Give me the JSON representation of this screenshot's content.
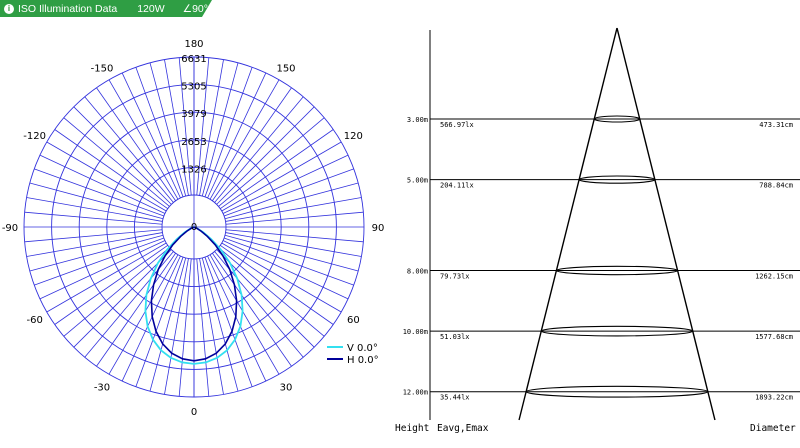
{
  "header": {
    "title": "ISO Illumination  Data",
    "power": "120W",
    "beam_angle": "∠90°",
    "icon": "info-icon",
    "colors": {
      "background": "#2f9e44"
    }
  },
  "chart_data": [
    {
      "type": "polar",
      "name": "luminous-intensity-distribution",
      "radial_ticks": [
        "0",
        "1326",
        "2653",
        "3979",
        "5305",
        "6631"
      ],
      "radial_max": 6631,
      "angle_labels": [
        "180",
        "150",
        "120",
        "90",
        "60",
        "30",
        "0",
        "-30",
        "-60",
        "-90",
        "-120",
        "-150"
      ],
      "angle_label_values": [
        180,
        150,
        120,
        90,
        60,
        30,
        0,
        -30,
        -60,
        -90,
        -120,
        -150
      ],
      "grid_step_degrees": 5,
      "colors": {
        "grid": "#3333dd",
        "series_v": "#33e0f0",
        "series_h": "#00009a"
      },
      "series": [
        {
          "name": "V 0.0°",
          "color": "#33e0f0",
          "points": [
            [
              0,
              5340
            ],
            [
              5,
              5300
            ],
            [
              10,
              5180
            ],
            [
              15,
              4980
            ],
            [
              20,
              4680
            ],
            [
              25,
              4280
            ],
            [
              30,
              3790
            ],
            [
              35,
              3240
            ],
            [
              40,
              2630
            ],
            [
              45,
              1990
            ],
            [
              50,
              1360
            ],
            [
              55,
              820
            ],
            [
              60,
              420
            ],
            [
              65,
              180
            ],
            [
              70,
              60
            ],
            [
              75,
              15
            ],
            [
              80,
              0
            ]
          ]
        },
        {
          "name": "H 0.0°",
          "color": "#00009a",
          "points": [
            [
              0,
              5220
            ],
            [
              5,
              5160
            ],
            [
              10,
              5000
            ],
            [
              15,
              4720
            ],
            [
              20,
              4330
            ],
            [
              25,
              3860
            ],
            [
              30,
              3320
            ],
            [
              35,
              2750
            ],
            [
              40,
              2170
            ],
            [
              45,
              1600
            ],
            [
              50,
              1080
            ],
            [
              55,
              640
            ],
            [
              60,
              320
            ],
            [
              65,
              120
            ],
            [
              70,
              35
            ],
            [
              75,
              8
            ],
            [
              80,
              0
            ]
          ]
        }
      ]
    },
    {
      "type": "illuminance-cone",
      "name": "illuminance-cone",
      "rows": [
        {
          "height": "3.00m",
          "eavg": "566.97lx",
          "diameter": "473.31cm"
        },
        {
          "height": "5.00m",
          "eavg": "204.11lx",
          "diameter": "788.84cm"
        },
        {
          "height": "8.00m",
          "eavg": "79.73lx",
          "diameter": "1262.15cm"
        },
        {
          "height": "10.00m",
          "eavg": "51.03lx",
          "diameter": "1577.68cm"
        },
        {
          "height": "12.00m",
          "eavg": "35.44lx",
          "diameter": "1893.22cm"
        }
      ],
      "height_values": [
        3,
        5,
        8,
        10,
        12
      ],
      "diameter_values_cm": [
        473.31,
        788.84,
        1262.15,
        1577.68,
        1893.22
      ],
      "footer": {
        "height_label": "Height",
        "eavg_label": "Eavg,Emax",
        "diameter_label": "Diameter"
      }
    }
  ]
}
